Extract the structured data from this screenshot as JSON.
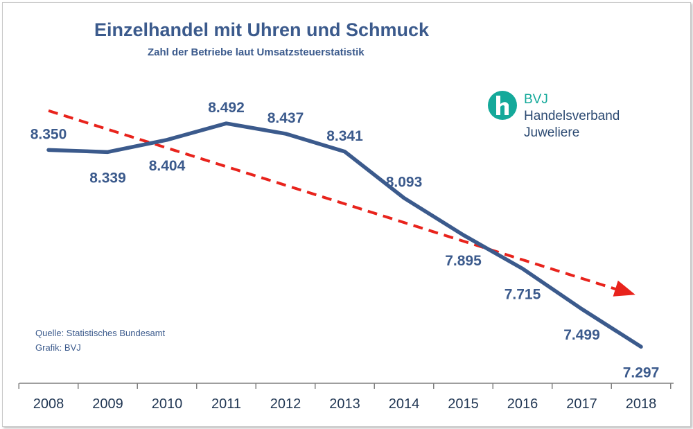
{
  "chart_data": {
    "type": "line",
    "title": "Einzelhandel mit Uhren und Schmuck",
    "subtitle": "Zahl der Betriebe laut Umsatzsteuerstatistik",
    "categories": [
      "2008",
      "2009",
      "2010",
      "2011",
      "2012",
      "2013",
      "2014",
      "2015",
      "2016",
      "2017",
      "2018"
    ],
    "series": [
      {
        "values": [
          8350,
          8339,
          8404,
          8492,
          8437,
          8341,
          8093,
          7895,
          7715,
          7499,
          7297
        ],
        "labels": [
          "8.350",
          "8.339",
          "8.404",
          "8.492",
          "8.437",
          "8.341",
          "8.093",
          "7.895",
          "7.715",
          "7.499",
          "7.297"
        ]
      }
    ],
    "trend": {
      "start": 8560,
      "end": 7580,
      "style": "dashed-arrow"
    },
    "ylim": [
      7150,
      8800
    ],
    "grid": false,
    "colors": {
      "line": "#3b5a8c",
      "trend": "#e8231c",
      "text": "#3b5a8c"
    }
  },
  "source": {
    "line1": "Quelle: Statistisches Bundesamt",
    "line2": "Grafik: BVJ"
  },
  "logo": {
    "icon": "bvj-h-logo",
    "abbr": "BVJ",
    "line1": "Handelsverband",
    "line2": "Juweliere",
    "color": "#14a99a"
  }
}
